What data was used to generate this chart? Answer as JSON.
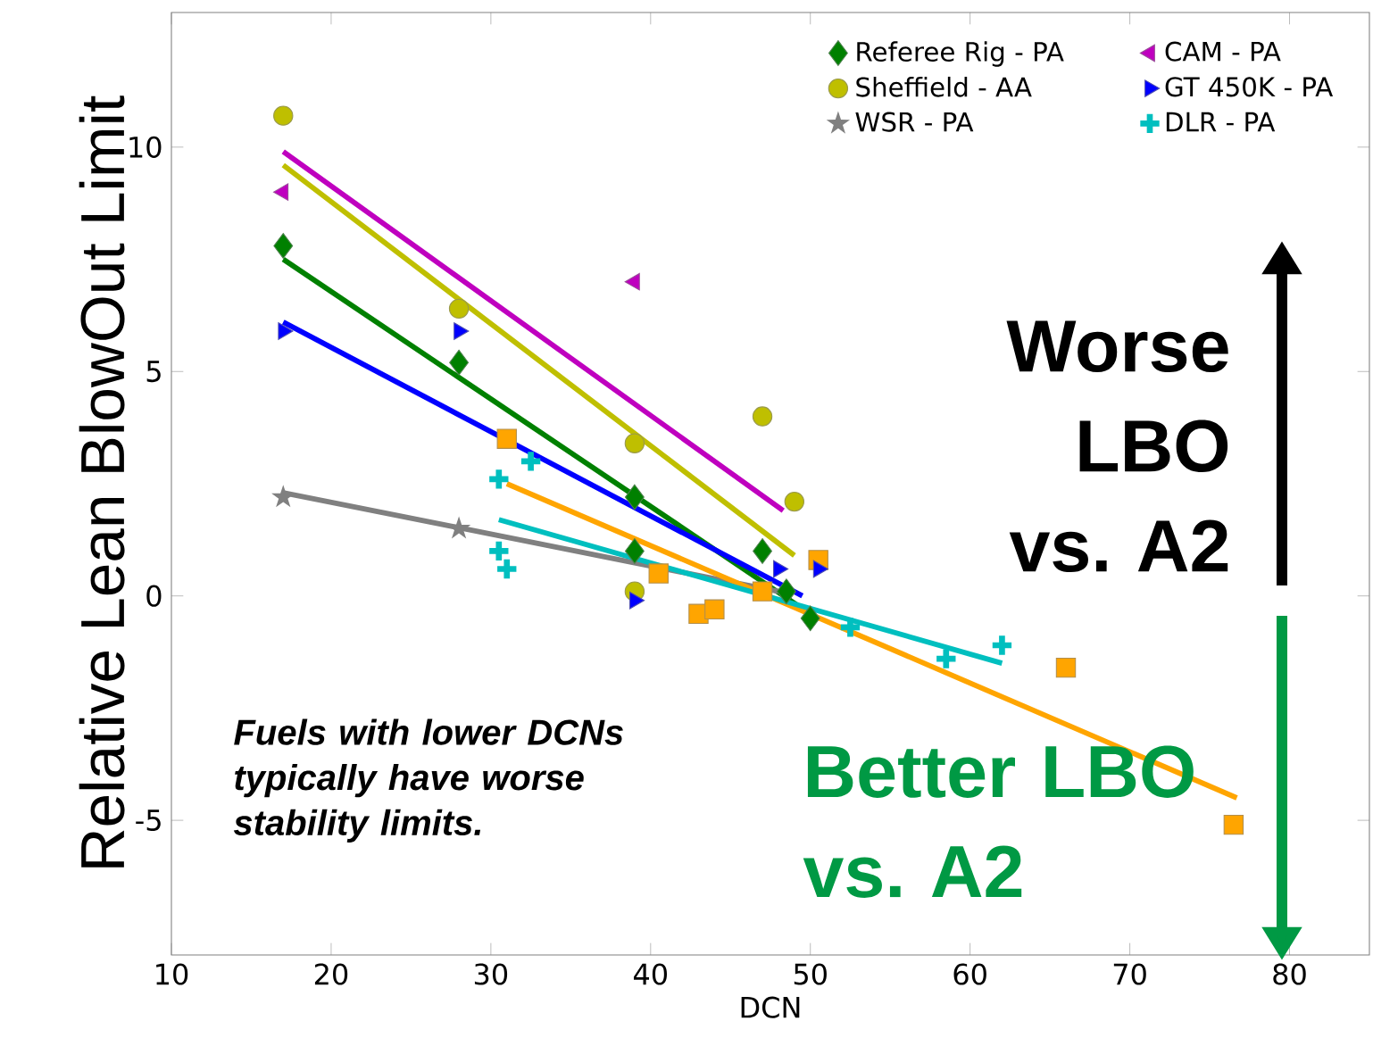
{
  "chart_data": {
    "type": "scatter",
    "xlabel": "DCN",
    "ylabel": "Relative Lean BlowOut Limit",
    "xlim": [
      10,
      85
    ],
    "ylim": [
      -8,
      13
    ],
    "xticks": [
      10,
      20,
      30,
      40,
      50,
      60,
      70,
      80
    ],
    "yticks": [
      -5,
      0,
      5,
      10
    ],
    "legend": "top right",
    "annotations": [
      "*Fuels with lower DCNs typically have worse stability limits.*",
      "Worse LBO vs. A2",
      "Better LBO vs. A2"
    ],
    "series": [
      {
        "type": "line",
        "color": "#008000",
        "x": [
          17,
          50
        ],
        "values": [
          7.5,
          -0.4
        ]
      },
      {
        "type": "line",
        "color": "#bfbf00",
        "x": [
          17,
          49
        ],
        "values": [
          9.6,
          0.9
        ]
      },
      {
        "type": "line",
        "color": "#808080",
        "x": [
          17,
          48
        ],
        "values": [
          2.3,
          0.1
        ]
      },
      {
        "type": "line",
        "color": "#ffa500",
        "x": [
          31,
          76.7
        ],
        "values": [
          2.5,
          -4.5
        ]
      },
      {
        "type": "line",
        "color": "#bf00bf",
        "x": [
          17,
          48.3
        ],
        "values": [
          9.9,
          1.9
        ]
      },
      {
        "type": "line",
        "color": "#0000ff",
        "x": [
          17,
          49.5
        ],
        "values": [
          6.1,
          0.0
        ]
      },
      {
        "type": "line",
        "color": "#00bfbf",
        "x": [
          30.5,
          62
        ],
        "values": [
          1.7,
          -1.5
        ]
      },
      {
        "name": "Referee Rig - PA",
        "color": "#008000",
        "marker": "diamond",
        "x": [
          17,
          28,
          39,
          39,
          47,
          48.5,
          50
        ],
        "values": [
          7.8,
          5.2,
          2.2,
          1.0,
          1.0,
          0.1,
          -0.5
        ]
      },
      {
        "name": "Sheffield - AA",
        "color": "#bfbf00",
        "marker": "circle",
        "x": [
          17,
          28,
          39,
          39,
          47,
          49
        ],
        "values": [
          10.7,
          6.4,
          3.4,
          0.1,
          4.0,
          2.1
        ]
      },
      {
        "name": "WSR - PA",
        "color": "#808080",
        "marker": "star",
        "x": [
          17,
          28
        ],
        "values": [
          2.2,
          1.5
        ]
      },
      {
        "color": "#ffa500",
        "marker": "square",
        "x": [
          31,
          40.5,
          43,
          44,
          47,
          50.5,
          66,
          76.5
        ],
        "values": [
          3.5,
          0.5,
          -0.4,
          -0.3,
          0.1,
          0.8,
          -1.6,
          -5.1
        ]
      },
      {
        "name": "CAM - PA",
        "color": "#bf00bf",
        "marker": "triangle-left",
        "x": [
          17,
          39
        ],
        "values": [
          9.0,
          7.0
        ]
      },
      {
        "name": "GT 450K - PA",
        "color": "#0000ff",
        "marker": "triangle-right",
        "x": [
          17,
          28,
          39,
          48,
          50.5
        ],
        "values": [
          5.9,
          5.9,
          -0.1,
          0.6,
          0.6
        ]
      },
      {
        "name": "DLR - PA",
        "color": "#00bfbf",
        "marker": "cross",
        "x": [
          30.5,
          32.5,
          30.5,
          31,
          52.5,
          58.5,
          62
        ],
        "values": [
          2.6,
          3.0,
          1.0,
          0.6,
          -0.7,
          -1.4,
          -1.1
        ]
      }
    ]
  }
}
